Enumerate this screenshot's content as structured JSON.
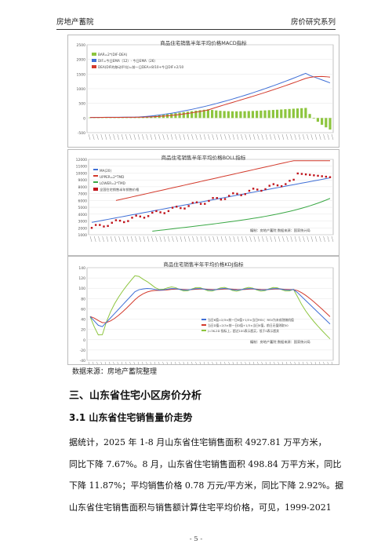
{
  "header": {
    "left": "房地产蓄院",
    "right": "房价研究系列"
  },
  "charts": {
    "macd": {
      "title": "商品住宅销售半年平均价格MACD指标",
      "yticks": [
        "2500",
        "2000",
        "1500",
        "1000",
        "500",
        "0",
        "-500"
      ],
      "legend": [
        "BAR=2*(DIF-DEA)",
        "DIF=今日EMA（12）- 今日EMA（26）",
        "DEA(DIF的移动平均)=前一日DEA×8/10+今日DIF×2/10"
      ],
      "colors": {
        "bar": "#8dc53e",
        "dif": "#3f6fd6",
        "dea": "#d33a2c"
      }
    },
    "boll": {
      "title": "商品住宅销售半年平均价格BOLL指标",
      "yticks": [
        "12000",
        "11000",
        "10000",
        "9000",
        "8000",
        "7000",
        "6000",
        "5000",
        "4000",
        "3000",
        "2000",
        "1000"
      ],
      "legend": [
        "MA(20)",
        "UPPER=2*TMD",
        "LOWER=2*TMD",
        "全国住宅销售半年销售价格"
      ],
      "note": "编制：房地产蓄院        数据来源：国家统计局",
      "colors": {
        "mid": "#3f6fd6",
        "upper": "#d33a2c",
        "lower": "#3aa845",
        "price": "#c0131b"
      }
    },
    "kdj": {
      "title": "商品住宅销售半年平均价格KDJ指标",
      "yticks": [
        "140",
        "120",
        "100",
        "80",
        "60",
        "40",
        "20",
        "0",
        "-20",
        "-40"
      ],
      "legend": [
        "当日K值=2/3×前一日K值+1/3×当日RSV；RSV为未成熟随机值",
        "当日D值=2/3×前一日D值+1/3×当日K值，前日无值则取50",
        "J=3K-2D 指标上，超过100表示超买，低于0表示超卖"
      ],
      "note": "编制：房地产蓄院        数据来源：国家统计局",
      "colors": {
        "k": "#3f6fd6",
        "d": "#d33a2c",
        "j": "#8dc53e"
      }
    }
  },
  "source_line": "数据来源：房地产蓄院整理",
  "section_heading": "三、山东省住宅小区房价分析",
  "subsection_heading": "3.1 山东省住宅销售量价走势",
  "paragraph": [
    "据统计，2025 年 1-8 月山东省住宅销售面积 4927.81 万平方米，",
    "同比下降 7.67%。8 月，山东省住宅销售面积 498.84 万平方米，同比",
    "下降 11.87%；平均销售价格 0.78 万元/平方米，同比下降 2.92%。据",
    "山东省住宅销售面积与销售额计算住宅平均价格，可见，1999-2021"
  ],
  "page_number": "- 5 -"
}
